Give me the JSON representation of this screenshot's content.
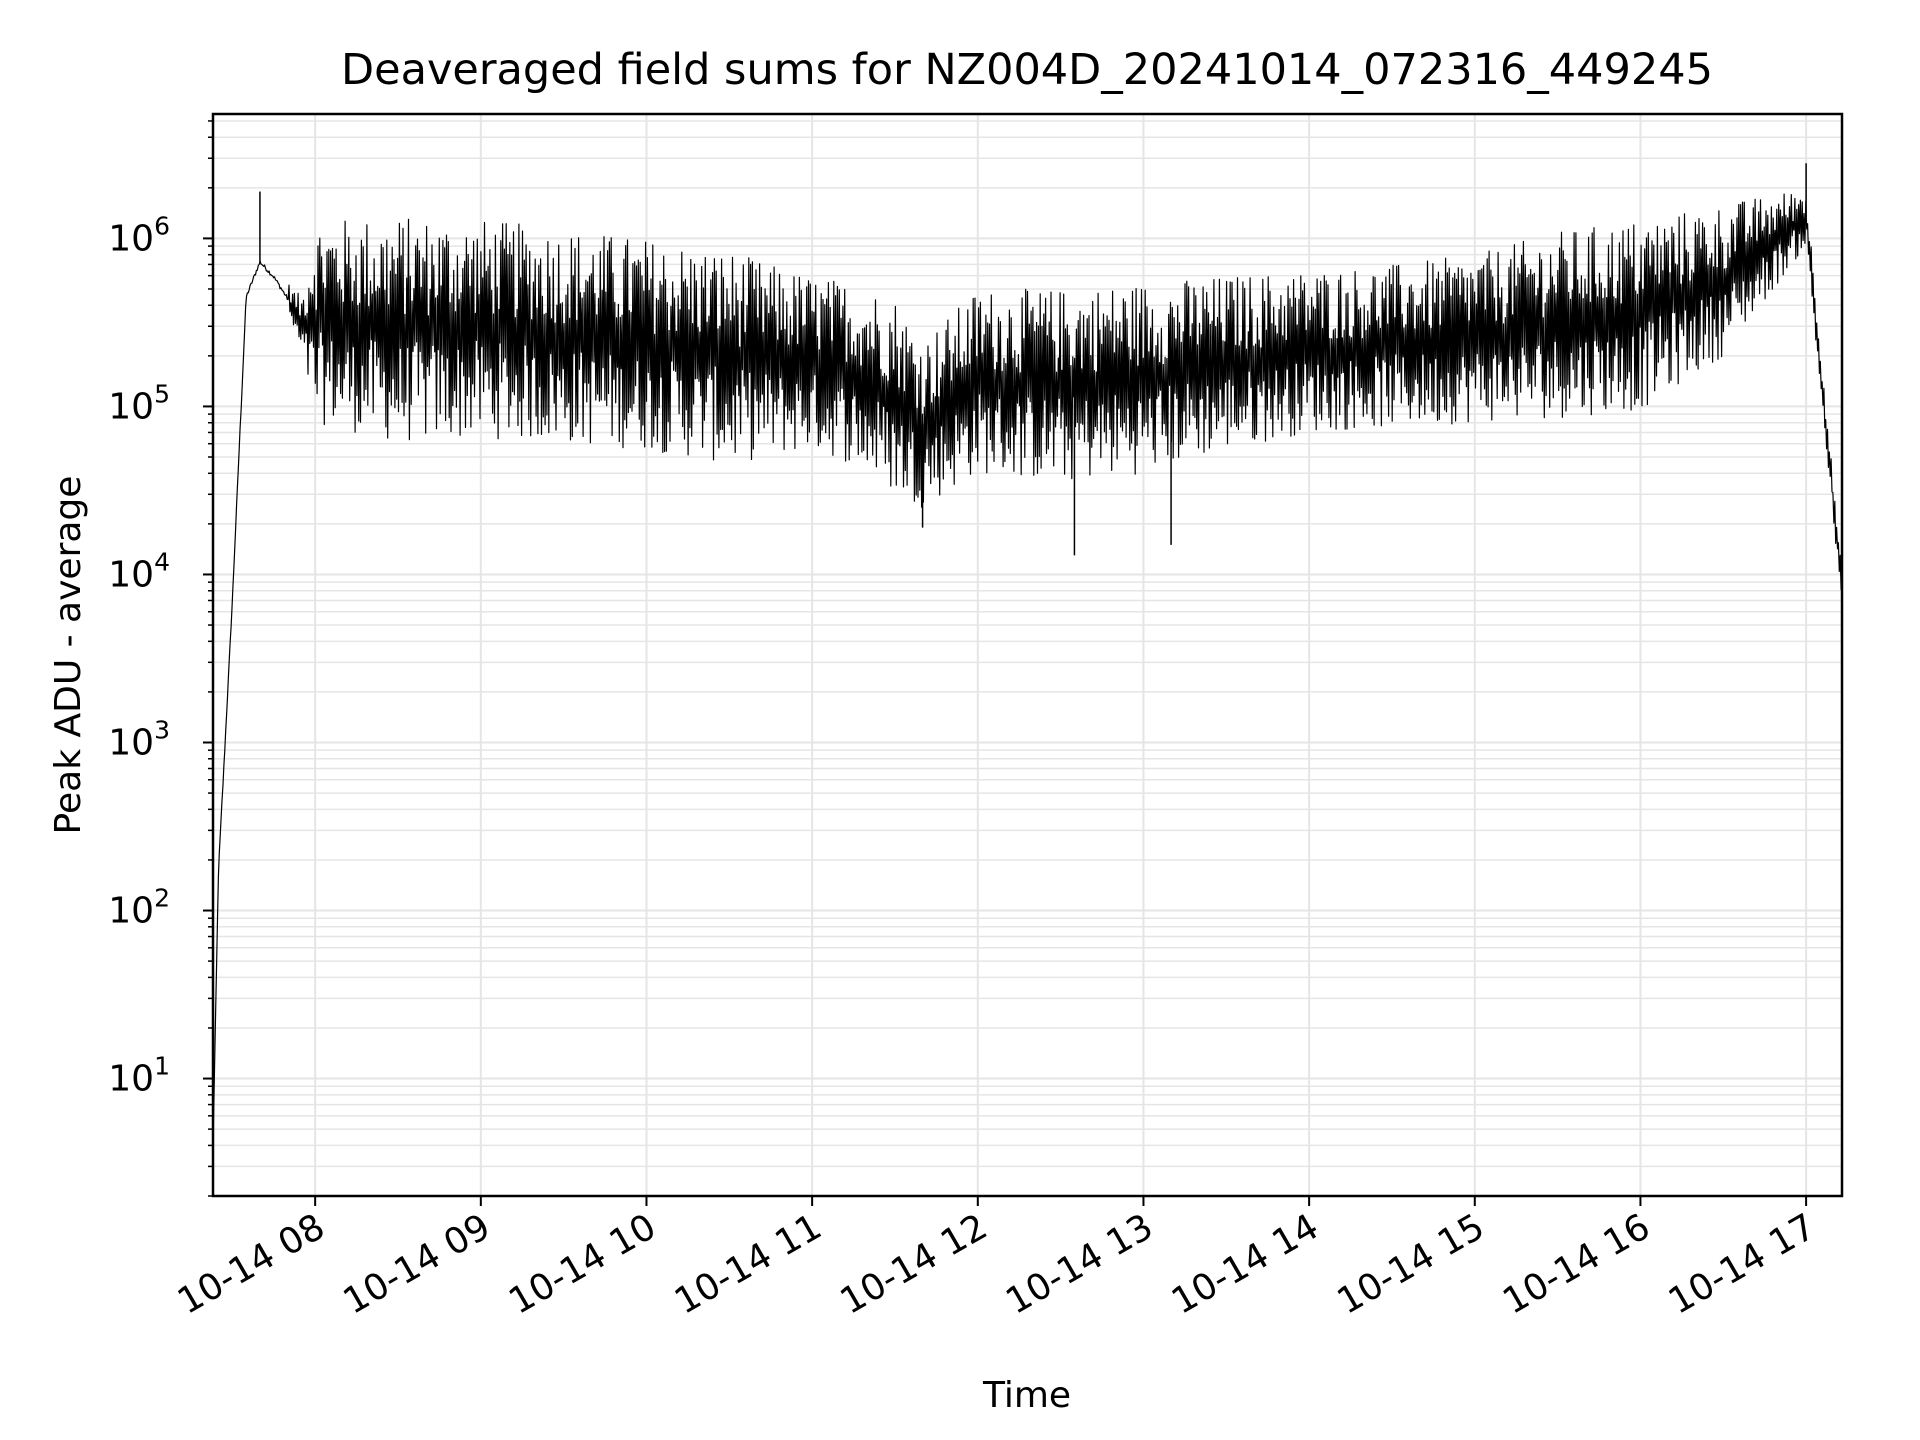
{
  "chart_data": {
    "type": "line",
    "title": "Deaveraged field sums for NZ004D_20241014_072316_449245",
    "xlabel": "Time",
    "ylabel": "Peak ADU - average",
    "yscale": "log",
    "ylim": [
      2,
      5500000
    ],
    "xlim": [
      "10-14 07:23",
      "10-14 17:13"
    ],
    "grid": true,
    "line_color": "#000000",
    "grid_color": "#e5e5e5",
    "x_ticks": [
      {
        "time": "10-14 08:00",
        "label": "10-14 08"
      },
      {
        "time": "10-14 09:00",
        "label": "10-14 09"
      },
      {
        "time": "10-14 10:00",
        "label": "10-14 10"
      },
      {
        "time": "10-14 11:00",
        "label": "10-14 11"
      },
      {
        "time": "10-14 12:00",
        "label": "10-14 12"
      },
      {
        "time": "10-14 13:00",
        "label": "10-14 13"
      },
      {
        "time": "10-14 14:00",
        "label": "10-14 14"
      },
      {
        "time": "10-14 15:00",
        "label": "10-14 15"
      },
      {
        "time": "10-14 16:00",
        "label": "10-14 16"
      },
      {
        "time": "10-14 17:00",
        "label": "10-14 17"
      }
    ],
    "y_ticks": [
      {
        "value": 10,
        "base": "10",
        "exp": "1"
      },
      {
        "value": 100,
        "base": "10",
        "exp": "2"
      },
      {
        "value": 1000,
        "base": "10",
        "exp": "3"
      },
      {
        "value": 10000,
        "base": "10",
        "exp": "4"
      },
      {
        "value": 100000,
        "base": "10",
        "exp": "5"
      },
      {
        "value": 1000000,
        "base": "10",
        "exp": "6"
      }
    ],
    "envelope": {
      "time": [
        "10-14 07:23",
        "10-14 07:25",
        "10-14 07:30",
        "10-14 07:35",
        "10-14 07:40",
        "10-14 07:45",
        "10-14 07:50",
        "10-14 07:55",
        "10-14 08:00",
        "10-14 08:30",
        "10-14 09:00",
        "10-14 09:30",
        "10-14 10:00",
        "10-14 10:30",
        "10-14 10:45",
        "10-14 11:00",
        "10-14 11:15",
        "10-14 11:30",
        "10-14 11:40",
        "10-14 12:00",
        "10-14 12:30",
        "10-14 13:00",
        "10-14 13:30",
        "10-14 14:00",
        "10-14 14:30",
        "10-14 15:00",
        "10-14 15:30",
        "10-14 16:00",
        "10-14 16:30",
        "10-14 17:00",
        "10-14 17:13"
      ],
      "high": [
        4,
        200,
        8000,
        500000,
        750000,
        700000,
        550000,
        450000,
        1300000,
        1350000,
        1300000,
        1150000,
        1000000,
        850000,
        700000,
        600000,
        550000,
        450000,
        250000,
        500000,
        500000,
        550000,
        600000,
        650000,
        700000,
        800000,
        1100000,
        1300000,
        1600000,
        2000000,
        10000
      ],
      "low": [
        4,
        150,
        6000,
        400000,
        700000,
        500000,
        350000,
        200000,
        80000,
        60000,
        65000,
        60000,
        55000,
        45000,
        50000,
        55000,
        45000,
        30000,
        25000,
        40000,
        35000,
        40000,
        55000,
        70000,
        75000,
        80000,
        85000,
        95000,
        200000,
        900000,
        6000
      ]
    },
    "spikes": [
      {
        "time": "10-14 07:40",
        "value": 1900000
      },
      {
        "time": "10-14 11:40",
        "value": 19000
      },
      {
        "time": "10-14 12:35",
        "value": 13000
      },
      {
        "time": "10-14 13:10",
        "value": 15000
      },
      {
        "time": "10-14 17:00",
        "value": 2800000
      }
    ]
  }
}
